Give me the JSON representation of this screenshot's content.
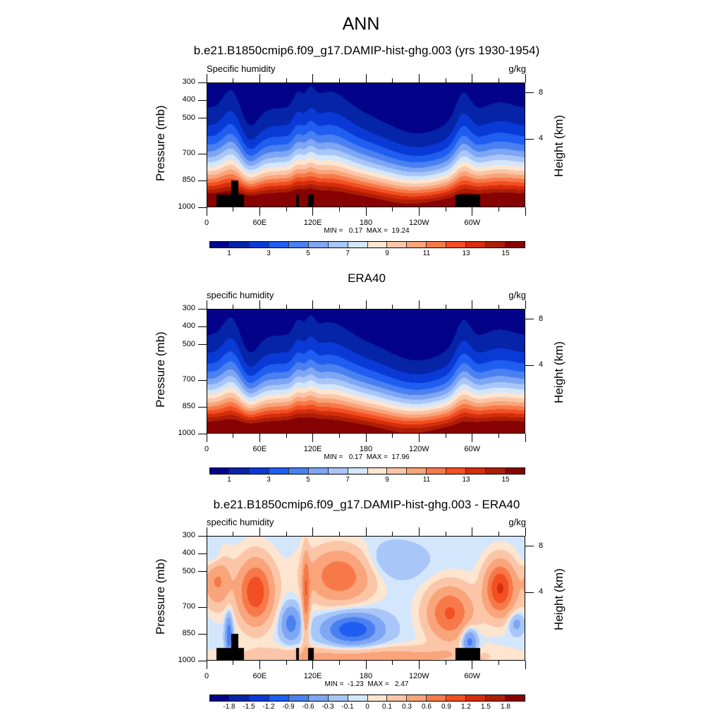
{
  "main_title": "ANN",
  "chart_data": [
    {
      "type": "heatmap",
      "subtype": "filled-contour",
      "title": "b.e21.B1850cmip6.f09_g17.DAMIP-hist-ghg.003 (yrs 1930-1954)",
      "left_string": "Specific humidity",
      "right_string": "g/kg",
      "xlabel": "",
      "ylabel": "Pressure (mb)",
      "ylabel_right": "Height (km)",
      "x_ticks": [
        "0",
        "60E",
        "120E",
        "180",
        "120W",
        "60W"
      ],
      "y_ticks": [
        "300",
        "400",
        "500",
        "700",
        "850",
        "1000"
      ],
      "y_ticks_right": [
        "8",
        "4"
      ],
      "ylim": [
        1000,
        300
      ],
      "xlim": [
        0,
        360
      ],
      "min_max_text": "MIN =   0.17  MAX =  19.24",
      "min": 0.17,
      "max": 19.24,
      "colorbar_labels": [
        "1",
        "3",
        "5",
        "7",
        "9",
        "11",
        "13",
        "15"
      ],
      "levels": [
        1,
        2,
        3,
        4,
        5,
        6,
        7,
        8,
        9,
        10,
        11,
        12,
        13,
        14,
        15
      ],
      "field": "model"
    },
    {
      "type": "heatmap",
      "subtype": "filled-contour",
      "title": "ERA40",
      "left_string": "specific humidity",
      "right_string": "g/kg",
      "xlabel": "",
      "ylabel": "Pressure (mb)",
      "ylabel_right": "Height (km)",
      "x_ticks": [
        "0",
        "60E",
        "120E",
        "180",
        "120W",
        "60W"
      ],
      "y_ticks": [
        "300",
        "400",
        "500",
        "700",
        "850",
        "1000"
      ],
      "y_ticks_right": [
        "8",
        "4"
      ],
      "ylim": [
        1000,
        300
      ],
      "xlim": [
        0,
        360
      ],
      "min_max_text": "MIN =   0.17  MAX =  17.96",
      "min": 0.17,
      "max": 17.96,
      "colorbar_labels": [
        "1",
        "3",
        "5",
        "7",
        "9",
        "11",
        "13",
        "15"
      ],
      "levels": [
        1,
        2,
        3,
        4,
        5,
        6,
        7,
        8,
        9,
        10,
        11,
        12,
        13,
        14,
        15
      ],
      "field": "obs"
    },
    {
      "type": "heatmap",
      "subtype": "filled-contour",
      "title": "b.e21.B1850cmip6.f09_g17.DAMIP-hist-ghg.003 - ERA40",
      "left_string": "specific humidity",
      "right_string": "g/kg",
      "xlabel": "",
      "ylabel": "Pressure (mb)",
      "ylabel_right": "Height (km)",
      "x_ticks": [
        "0",
        "60E",
        "120E",
        "180",
        "120W",
        "60W"
      ],
      "y_ticks": [
        "300",
        "400",
        "500",
        "700",
        "850",
        "1000"
      ],
      "y_ticks_right": [
        "8",
        "4"
      ],
      "ylim": [
        1000,
        300
      ],
      "xlim": [
        0,
        360
      ],
      "min_max_text": "MIN =  -1.23  MAX =   2.47",
      "min": -1.23,
      "max": 2.47,
      "colorbar_labels": [
        "-1.8",
        "-1.5",
        "-1.2",
        "-0.9",
        "-0.6",
        "-0.3",
        "-0.1",
        "0",
        "0.1",
        "0.3",
        "0.6",
        "0.9",
        "1.2",
        "1.5",
        "1.8"
      ],
      "levels": [
        -1.8,
        -1.5,
        -1.2,
        -0.9,
        -0.6,
        -0.3,
        -0.1,
        0,
        0.1,
        0.3,
        0.6,
        0.9,
        1.2,
        1.5,
        1.8
      ],
      "field": "diff"
    }
  ],
  "colors": [
    "#03038a",
    "#0524a8",
    "#0a3ad6",
    "#1f5ef0",
    "#4a80f0",
    "#7ea6f4",
    "#a9c6f8",
    "#d4e6fb",
    "#fde5d0",
    "#fbc6a8",
    "#f9a47a",
    "#f7794a",
    "#f24f22",
    "#d62d0c",
    "#ad1e06",
    "#870202"
  ],
  "mask_color": "#000000"
}
